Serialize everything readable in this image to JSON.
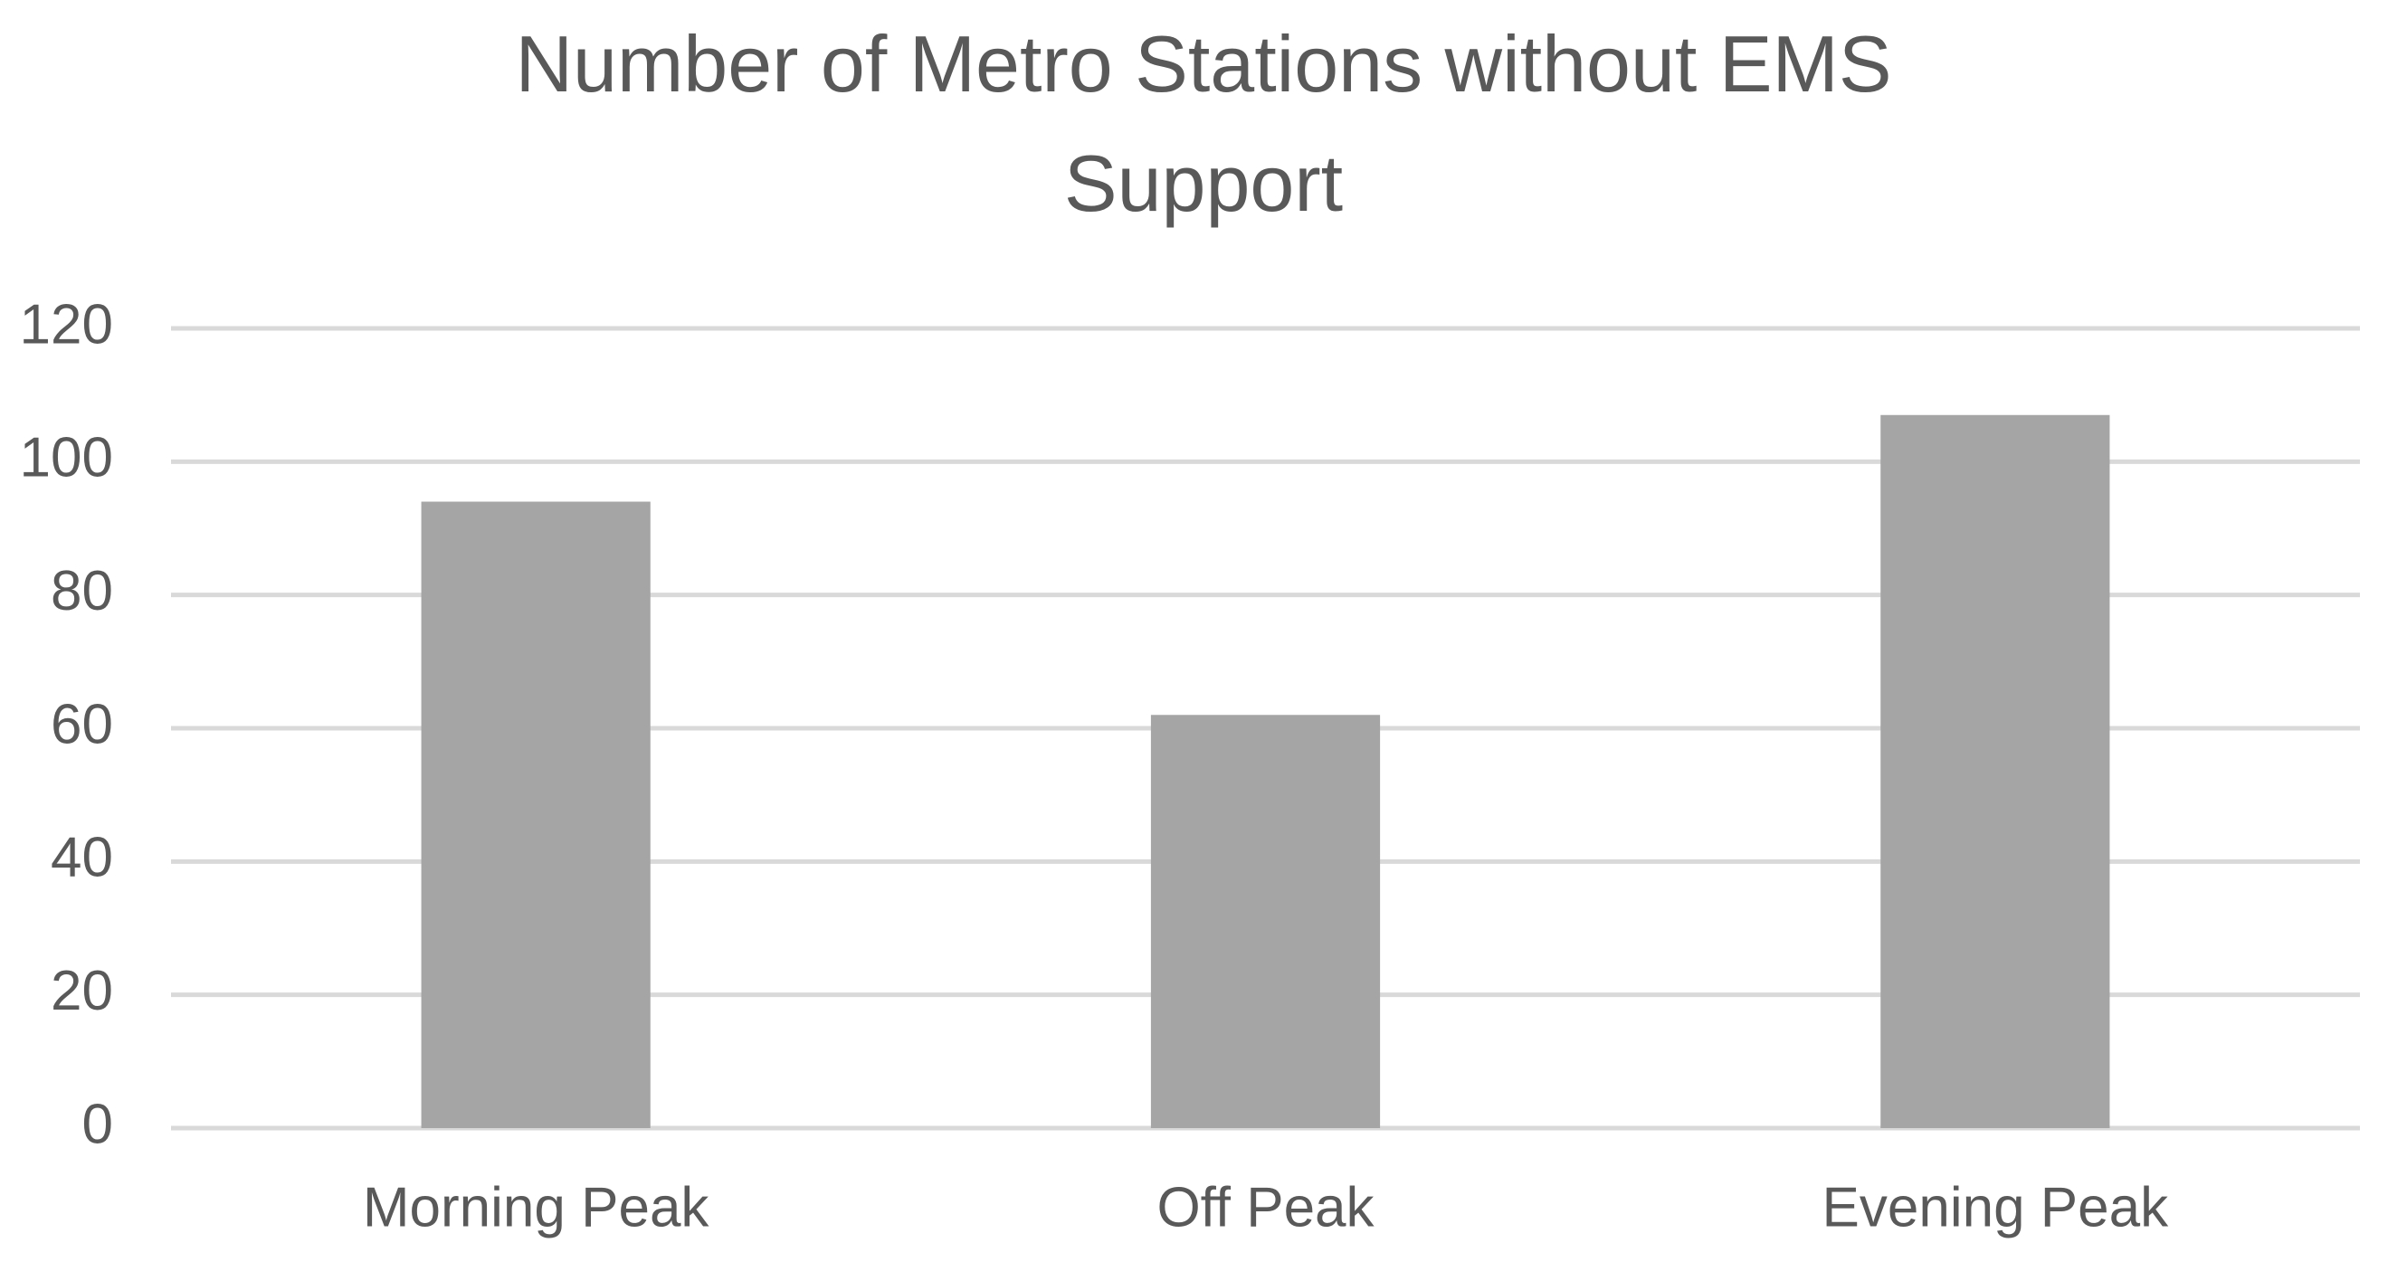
{
  "chart_data": {
    "type": "bar",
    "title": "Number of Metro Stations without EMS Support",
    "categories": [
      "Morning Peak",
      "Off Peak",
      "Evening Peak"
    ],
    "values": [
      94,
      62,
      107
    ],
    "color": "#a5a5a5",
    "ylim": [
      0,
      120
    ],
    "yticks": [
      0,
      20,
      40,
      60,
      80,
      100,
      120
    ],
    "grid": true
  }
}
